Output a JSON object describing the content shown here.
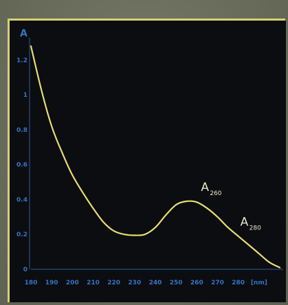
{
  "chart_data": {
    "type": "line",
    "title": "",
    "xlabel": "",
    "ylabel": "A",
    "x_unit_label": "[nm]",
    "xlim": [
      180,
      300
    ],
    "ylim": [
      0,
      1.3
    ],
    "x_ticks": [
      "180",
      "190",
      "200",
      "210",
      "220",
      "230",
      "240",
      "250",
      "260",
      "270",
      "280"
    ],
    "y_ticks": [
      "0",
      "0.2",
      "0.4",
      "0.6",
      "0.8",
      "1",
      "1.2"
    ],
    "grid": false,
    "line_color": "#e7e06a",
    "series": [
      {
        "x": [
          180,
          185,
          190,
          195,
          200,
          205,
          210,
          215,
          220,
          225,
          230,
          235,
          240,
          245,
          250,
          255,
          260,
          265,
          270,
          275,
          280,
          285,
          290,
          295,
          300
        ],
        "y": [
          1.28,
          1.03,
          0.82,
          0.67,
          0.54,
          0.44,
          0.35,
          0.27,
          0.22,
          0.2,
          0.195,
          0.2,
          0.24,
          0.31,
          0.37,
          0.39,
          0.385,
          0.35,
          0.3,
          0.24,
          0.19,
          0.14,
          0.09,
          0.04,
          0.01
        ]
      }
    ],
    "annotations": [
      {
        "text": "A",
        "subscript": "260",
        "x": 262,
        "y": 0.45
      },
      {
        "text": "A",
        "subscript": "280",
        "x": 281,
        "y": 0.25
      }
    ]
  }
}
